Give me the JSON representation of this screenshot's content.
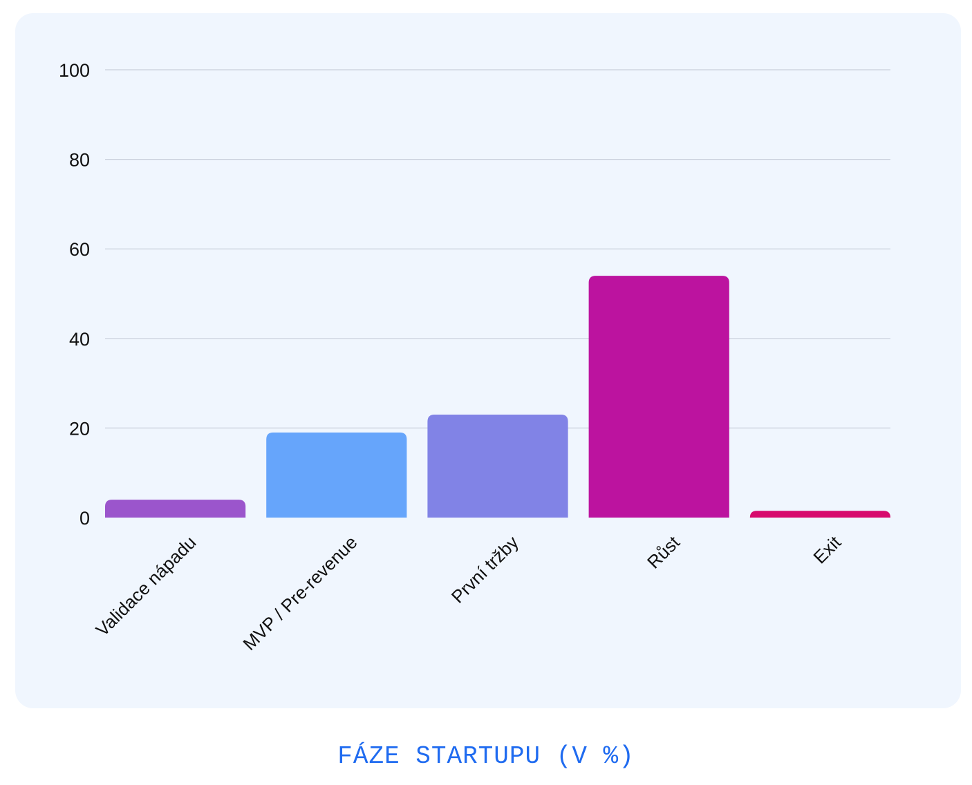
{
  "chart_data": {
    "type": "bar",
    "title": "FÁZE STARTUPU (V %)",
    "categories": [
      "Validace nápadu",
      "MVP / Pre-revenue",
      "První tržby",
      "Růst",
      "Exit"
    ],
    "values": [
      4,
      19,
      23,
      54,
      1.5
    ],
    "colors": [
      "#9b55cc",
      "#66a5fb",
      "#8183e6",
      "#bc139f",
      "#d70a6d"
    ],
    "ylim": [
      0,
      100
    ],
    "yticks": [
      0,
      20,
      40,
      60,
      80,
      100
    ],
    "xlabel": "",
    "ylabel": "",
    "grid": true,
    "legend": "none"
  }
}
